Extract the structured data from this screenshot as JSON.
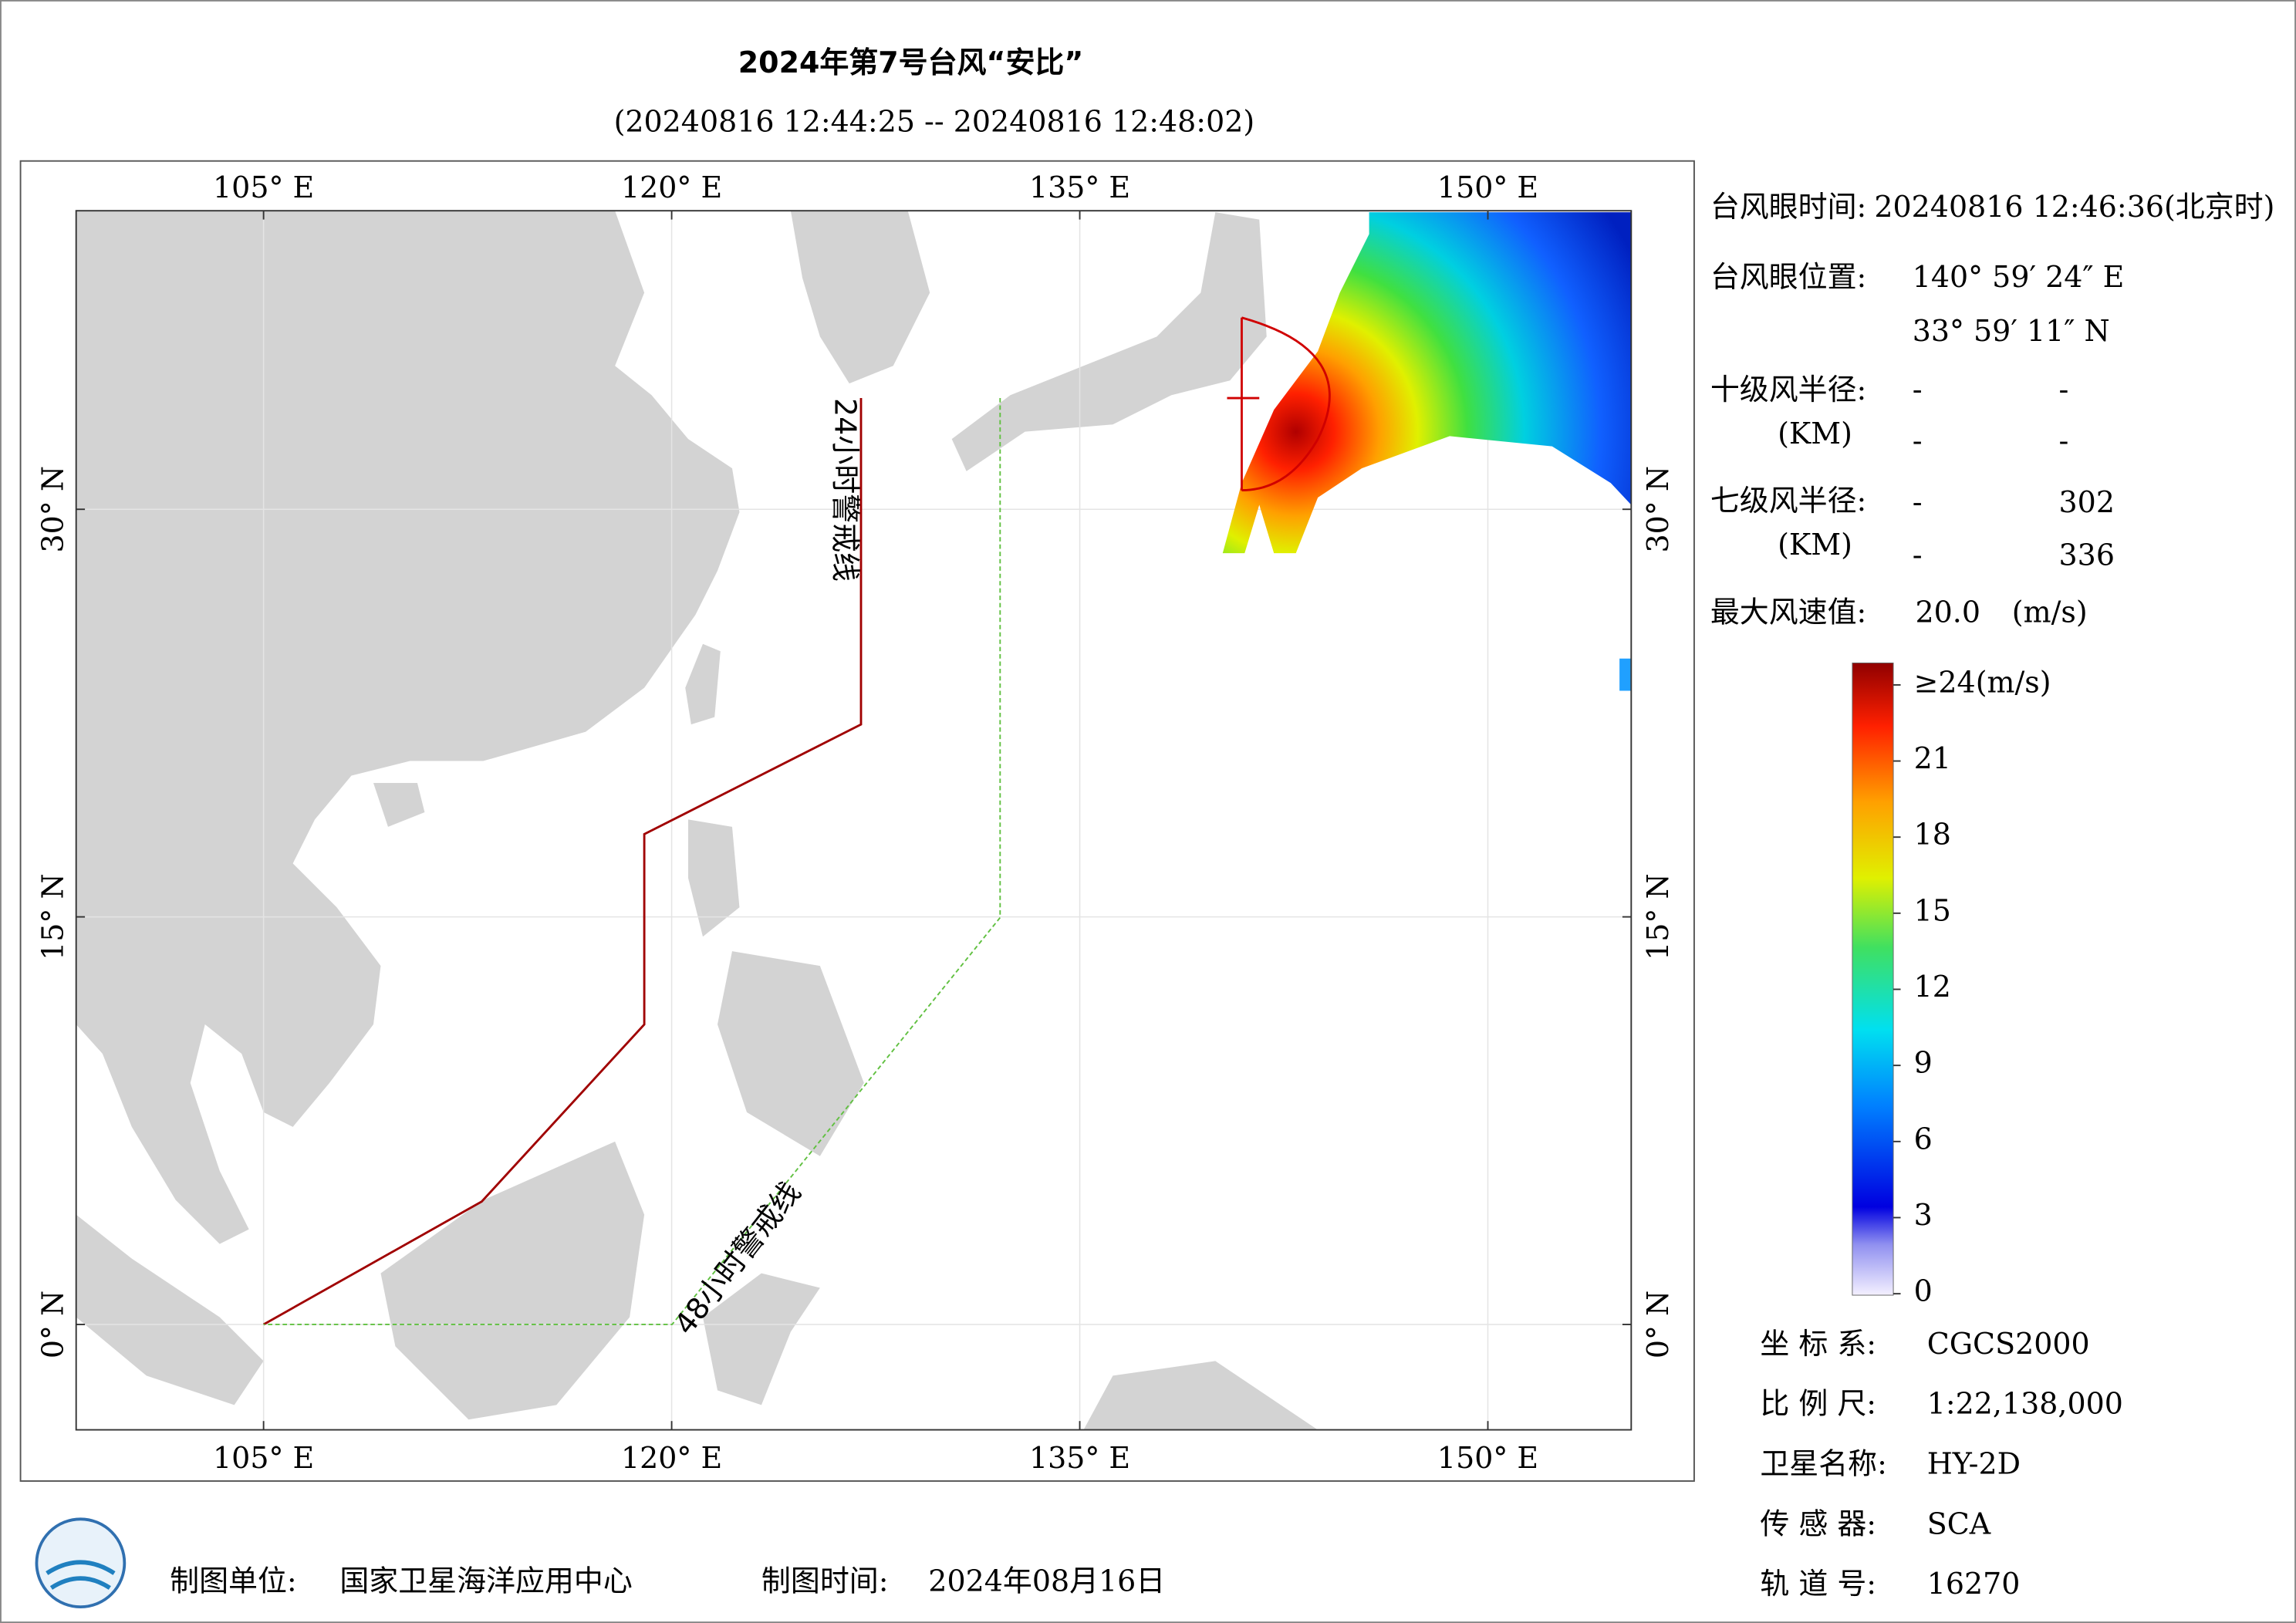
{
  "header": {
    "title": "2024年第7号台风“安比”",
    "subtitle": "(20240816 12:44:25 -- 20240816 12:48:02)"
  },
  "map": {
    "lon_ticks": [
      {
        "value": 105,
        "label": "105° E"
      },
      {
        "value": 120,
        "label": "120° E"
      },
      {
        "value": 135,
        "label": "135° E"
      },
      {
        "value": 150,
        "label": "150° E"
      }
    ],
    "lat_ticks": [
      {
        "value": 0,
        "label": "0° N"
      },
      {
        "value": 15,
        "label": "15° N"
      },
      {
        "value": 30,
        "label": "30° N"
      }
    ],
    "warning_24h": "24小时警戒线",
    "warning_48h": "48小时警戒线"
  },
  "info": {
    "eye_time": {
      "label": "台风眼时间:",
      "value": "20240816 12:46:36(北京时)"
    },
    "eye_position": {
      "label": "台风眼位置:",
      "lon": "140° 59′ 24″ E",
      "lat": "33° 59′ 11″ N"
    },
    "radius_10": {
      "label": "十级风半径:",
      "unit": "(KM)",
      "values": [
        "-",
        "-",
        "-",
        "-"
      ]
    },
    "radius_7": {
      "label": "七级风半径:",
      "unit": "(KM)",
      "values": [
        "-",
        "302",
        "-",
        "336"
      ]
    },
    "max_wind": {
      "label": "最大风速值:",
      "value": "20.0",
      "unit": "(m/s)"
    }
  },
  "colorbar": {
    "range": [
      0,
      24
    ],
    "ticks": [
      {
        "value": 24,
        "label": "≥24(m/s)"
      },
      21,
      18,
      15,
      12,
      9,
      6,
      3,
      0
    ]
  },
  "meta": [
    {
      "label": "坐 标 系:",
      "value": "CGCS2000"
    },
    {
      "label": "比 例 尺:",
      "value": "1:22,138,000"
    },
    {
      "label": "卫星名称:",
      "value": "HY-2D"
    },
    {
      "label": "传 感 器:",
      "value": "SCA"
    },
    {
      "label": "轨 道 号:",
      "value": "16270"
    }
  ],
  "footer": {
    "unit_label": "制图单位:",
    "unit": "国家卫星海洋应用中心",
    "time_label": "制图时间:",
    "time": "2024年08月16日"
  }
}
